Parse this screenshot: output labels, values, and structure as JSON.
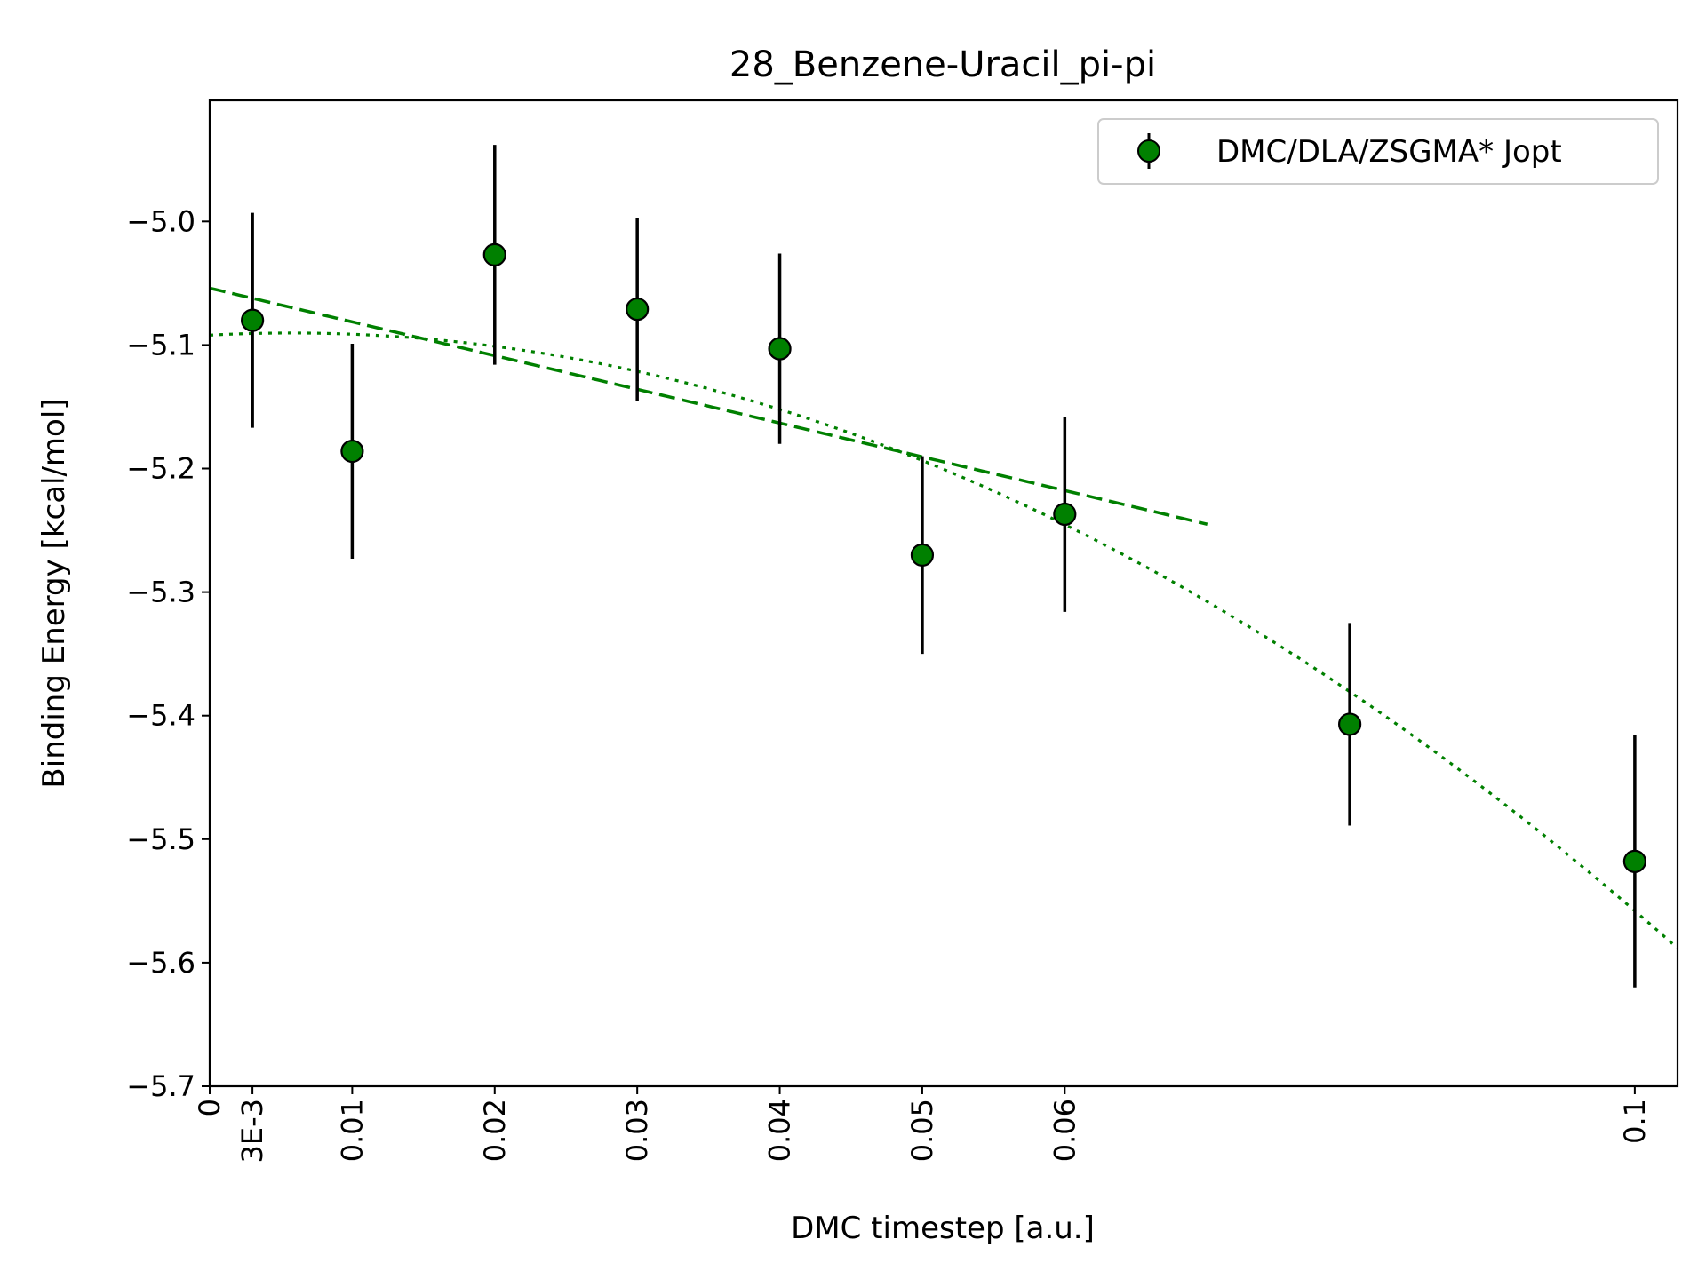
{
  "chart_data": {
    "type": "scatter",
    "title": "28_Benzene-Uracil_pi-pi",
    "xlabel": "DMC timestep [a.u.]",
    "ylabel": "Binding Energy [kcal/mol]",
    "xlim": [
      0,
      0.103
    ],
    "ylim": [
      -5.7,
      -4.902
    ],
    "x_ticks": [
      0,
      0.003,
      0.01,
      0.02,
      0.03,
      0.04,
      0.05,
      0.06,
      0.1
    ],
    "x_tick_labels": [
      "0",
      "3E-3",
      "0.01",
      "0.02",
      "0.03",
      "0.04",
      "0.05",
      "0.06",
      "0.1"
    ],
    "y_ticks": [
      -5.0,
      -5.1,
      -5.2,
      -5.3,
      -5.4,
      -5.5,
      -5.6,
      -5.7
    ],
    "y_tick_labels": [
      "−5.0",
      "−5.1",
      "−5.2",
      "−5.3",
      "−5.4",
      "−5.5",
      "−5.6",
      "−5.7"
    ],
    "grid": false,
    "legend_position": "top-right",
    "series": [
      {
        "name": "DMC/DLA/ZSGMA* Jopt",
        "kind": "errorbar",
        "color": "#008000",
        "edge_color": "#000000",
        "x": [
          0.003,
          0.01,
          0.02,
          0.03,
          0.04,
          0.05,
          0.06,
          0.08,
          0.1
        ],
        "y": [
          -5.08,
          -5.186,
          -5.027,
          -5.071,
          -5.103,
          -5.27,
          -5.237,
          -5.407,
          -5.518
        ],
        "yerr": [
          0.087,
          0.087,
          0.089,
          0.074,
          0.077,
          0.08,
          0.079,
          0.082,
          0.102
        ]
      }
    ],
    "fits": [
      {
        "kind": "linear",
        "style": "dashed",
        "color": "#008000",
        "x_range": [
          0,
          0.07
        ],
        "intercept": -5.054,
        "slope": -2.73
      },
      {
        "kind": "quadratic",
        "style": "dotted",
        "color": "#008000",
        "x_range": [
          0,
          0.103
        ],
        "coefficients": [
          -5.092,
          0.6,
          -52.6
        ]
      }
    ]
  }
}
